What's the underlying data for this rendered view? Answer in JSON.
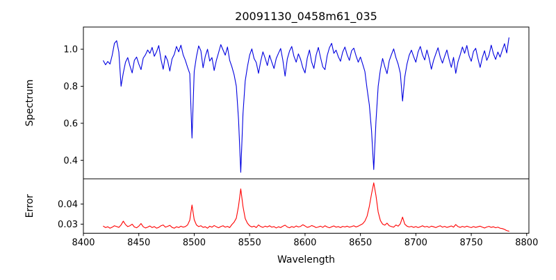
{
  "figure": {
    "background": "#ffffff",
    "text_color": "#000000",
    "axis_color": "#000000"
  },
  "chart_data": {
    "type": "line",
    "title": "20091130_0458m61_035",
    "xlabel": "Wavelength",
    "grid": false,
    "legend_position": "none",
    "x_start": 8418,
    "x_step": 2,
    "n_points": 184,
    "xlim": [
      8400,
      8802
    ],
    "xtick_values": [
      8400,
      8450,
      8500,
      8550,
      8600,
      8650,
      8700,
      8750,
      8800
    ],
    "xtick_labels": [
      "8400",
      "8450",
      "8500",
      "8550",
      "8600",
      "8650",
      "8700",
      "8750",
      "8800"
    ],
    "panels": [
      {
        "name": "spectrum",
        "ylabel": "Spectrum",
        "color": "#0000e0",
        "ylim": [
          0.3,
          1.12
        ],
        "ytick_values": [
          0.4,
          0.6,
          0.8,
          1.0
        ],
        "ytick_labels": [
          "0.4",
          "0.6",
          "0.8",
          "1.0"
        ],
        "values": [
          0.938,
          0.916,
          0.934,
          0.92,
          0.968,
          1.032,
          1.046,
          0.985,
          0.8,
          0.872,
          0.93,
          0.955,
          0.91,
          0.872,
          0.94,
          0.958,
          0.92,
          0.89,
          0.952,
          0.97,
          0.996,
          0.978,
          1.01,
          0.962,
          0.986,
          1.02,
          0.945,
          0.892,
          0.966,
          0.938,
          0.882,
          0.948,
          0.972,
          1.015,
          0.986,
          1.022,
          0.97,
          0.94,
          0.902,
          0.868,
          0.52,
          0.88,
          0.96,
          1.018,
          0.992,
          0.9,
          0.962,
          1.0,
          0.936,
          0.955,
          0.885,
          0.94,
          0.982,
          1.025,
          0.996,
          0.968,
          1.012,
          0.94,
          0.905,
          0.862,
          0.8,
          0.62,
          0.335,
          0.65,
          0.828,
          0.905,
          0.968,
          1.002,
          0.95,
          0.928,
          0.87,
          0.935,
          0.986,
          0.952,
          0.912,
          0.968,
          0.93,
          0.896,
          0.95,
          0.978,
          1.004,
          0.94,
          0.855,
          0.948,
          0.99,
          1.015,
          0.962,
          0.93,
          0.975,
          0.945,
          0.9,
          0.872,
          0.952,
          0.996,
          0.93,
          0.896,
          0.968,
          1.01,
          0.955,
          0.905,
          0.89,
          0.966,
          1.008,
          1.032,
          0.978,
          0.995,
          0.96,
          0.935,
          0.985,
          1.012,
          0.97,
          0.94,
          0.992,
          1.006,
          0.965,
          0.93,
          0.958,
          0.92,
          0.88,
          0.785,
          0.7,
          0.56,
          0.35,
          0.61,
          0.8,
          0.89,
          0.95,
          0.905,
          0.868,
          0.938,
          0.972,
          1.002,
          0.955,
          0.92,
          0.87,
          0.72,
          0.85,
          0.92,
          0.968,
          0.995,
          0.96,
          0.93,
          0.985,
          1.015,
          0.97,
          0.942,
          0.996,
          0.95,
          0.892,
          0.94,
          0.975,
          1.008,
          0.958,
          0.925,
          0.962,
          0.996,
          0.945,
          0.902,
          0.956,
          0.87,
          0.932,
          0.97,
          1.012,
          0.978,
          1.02,
          0.965,
          0.935,
          0.988,
          1.005,
          0.95,
          0.902,
          0.955,
          0.992,
          0.94,
          0.968,
          1.022,
          0.975,
          0.945,
          0.985,
          0.958,
          0.995,
          1.03,
          0.98,
          1.062
        ]
      },
      {
        "name": "error",
        "ylabel": "Error",
        "color": "#ff0000",
        "ylim": [
          0.0255,
          0.0525
        ],
        "ytick_values": [
          0.03,
          0.04
        ],
        "ytick_labels": [
          "0.03",
          "0.04"
        ],
        "values": [
          0.029,
          0.0283,
          0.0287,
          0.028,
          0.0285,
          0.0292,
          0.0288,
          0.0284,
          0.0296,
          0.0315,
          0.0298,
          0.0288,
          0.0292,
          0.03,
          0.0286,
          0.0282,
          0.029,
          0.0303,
          0.0287,
          0.0281,
          0.0285,
          0.0291,
          0.0283,
          0.0288,
          0.028,
          0.0284,
          0.0292,
          0.0296,
          0.0285,
          0.0289,
          0.0294,
          0.0284,
          0.028,
          0.0287,
          0.0283,
          0.029,
          0.0285,
          0.0288,
          0.0296,
          0.032,
          0.0395,
          0.0322,
          0.0296,
          0.0288,
          0.0292,
          0.0284,
          0.0287,
          0.028,
          0.029,
          0.0285,
          0.0293,
          0.0287,
          0.0282,
          0.0288,
          0.0292,
          0.0285,
          0.0289,
          0.0283,
          0.0298,
          0.031,
          0.033,
          0.039,
          0.0475,
          0.0388,
          0.0328,
          0.0305,
          0.0292,
          0.0286,
          0.029,
          0.0283,
          0.0296,
          0.0288,
          0.0284,
          0.029,
          0.0286,
          0.0292,
          0.0285,
          0.0288,
          0.0281,
          0.0287,
          0.0283,
          0.029,
          0.0295,
          0.0286,
          0.0282,
          0.0288,
          0.0284,
          0.0291,
          0.0286,
          0.0289,
          0.0297,
          0.0291,
          0.0284,
          0.0287,
          0.0293,
          0.0289,
          0.0283,
          0.0286,
          0.029,
          0.0284,
          0.0292,
          0.0286,
          0.0282,
          0.0287,
          0.0291,
          0.0285,
          0.0288,
          0.0283,
          0.0289,
          0.0286,
          0.029,
          0.0285,
          0.0288,
          0.0292,
          0.0286,
          0.029,
          0.0296,
          0.0302,
          0.0315,
          0.034,
          0.0388,
          0.045,
          0.0505,
          0.0442,
          0.036,
          0.0318,
          0.03,
          0.0295,
          0.0305,
          0.0292,
          0.0288,
          0.0285,
          0.0296,
          0.029,
          0.0302,
          0.0335,
          0.03,
          0.029,
          0.0286,
          0.0289,
          0.0284,
          0.0288,
          0.0283,
          0.0287,
          0.0292,
          0.0286,
          0.0289,
          0.0284,
          0.029,
          0.0287,
          0.0283,
          0.0288,
          0.0292,
          0.0285,
          0.0289,
          0.0284,
          0.0287,
          0.0291,
          0.0285,
          0.0298,
          0.0288,
          0.0284,
          0.0289,
          0.0285,
          0.029,
          0.0286,
          0.0283,
          0.0288,
          0.0284,
          0.0287,
          0.029,
          0.0285,
          0.0281,
          0.0286,
          0.0289,
          0.0284,
          0.0287,
          0.0282,
          0.0285,
          0.028,
          0.0278,
          0.0274,
          0.0268,
          0.0265
        ]
      }
    ]
  }
}
